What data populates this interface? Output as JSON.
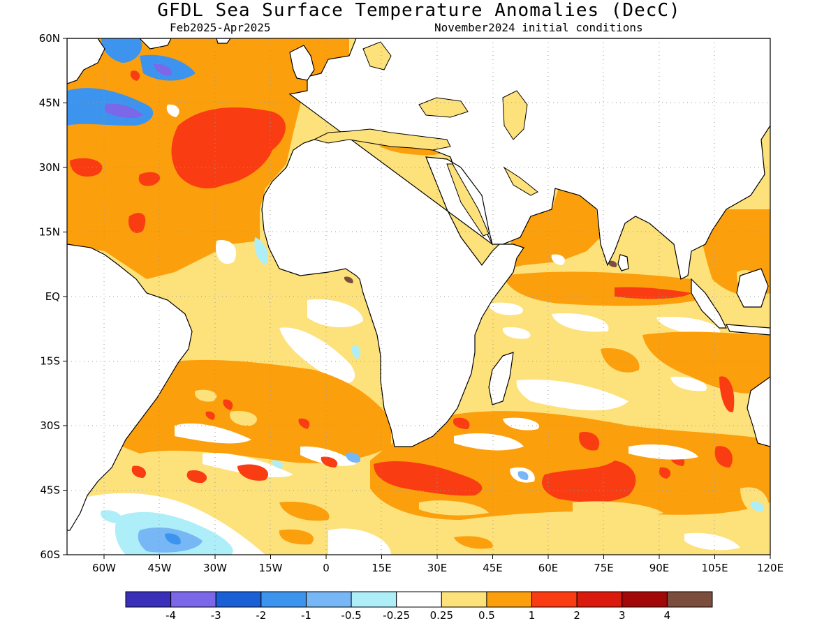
{
  "title": "GFDL Sea Surface Temperature Anomalies (DecC)",
  "subtitle_left": "Feb2025-Apr2025",
  "subtitle_right": "November2024 initial conditions",
  "map": {
    "lon_range": [
      -70,
      120
    ],
    "lat_range": [
      -60,
      60
    ],
    "lat_ticks": [
      {
        "value": 60,
        "label": "60N"
      },
      {
        "value": 45,
        "label": "45N"
      },
      {
        "value": 30,
        "label": "30N"
      },
      {
        "value": 15,
        "label": "15N"
      },
      {
        "value": 0,
        "label": "EQ"
      },
      {
        "value": -15,
        "label": "15S"
      },
      {
        "value": -30,
        "label": "30S"
      },
      {
        "value": -45,
        "label": "45S"
      },
      {
        "value": -60,
        "label": "60S"
      }
    ],
    "lon_ticks": [
      {
        "value": -60,
        "label": "60W"
      },
      {
        "value": -45,
        "label": "45W"
      },
      {
        "value": -30,
        "label": "30W"
      },
      {
        "value": -15,
        "label": "15W"
      },
      {
        "value": 0,
        "label": "0"
      },
      {
        "value": 15,
        "label": "15E"
      },
      {
        "value": 30,
        "label": "30E"
      },
      {
        "value": 45,
        "label": "45E"
      },
      {
        "value": 60,
        "label": "60E"
      },
      {
        "value": 75,
        "label": "75E"
      },
      {
        "value": 90,
        "label": "90E"
      },
      {
        "value": 105,
        "label": "105E"
      },
      {
        "value": 120,
        "label": "120E"
      }
    ]
  },
  "colorbar": {
    "colors": [
      "#3a2fb8",
      "#7b68e8",
      "#1a5fd6",
      "#3d94ee",
      "#77b7f5",
      "#aeeef8",
      "#ffffff",
      "#fde17a",
      "#fb9f0c",
      "#fa3c12",
      "#d91a0c",
      "#a20808",
      "#7a4d3d"
    ],
    "labels": [
      "-4",
      "-3",
      "-2",
      "-1",
      "-0.5",
      "-0.25",
      "0.25",
      "0.5",
      "1",
      "2",
      "3",
      "4"
    ]
  },
  "anomaly_regions": [
    {
      "level": "0.5",
      "color": "#fde17a",
      "area": "tropical and southern oceans"
    },
    {
      "level": "1",
      "color": "#fb9f0c",
      "area": "North Atlantic"
    },
    {
      "level": "1",
      "color": "#fb9f0c",
      "area": "South Atlantic 20S-40S"
    },
    {
      "level": "1",
      "color": "#fb9f0c",
      "area": "Southern Indian Ocean"
    },
    {
      "level": "1",
      "color": "#fb9f0c",
      "area": "Arabian Sea and Bay of Bengal"
    },
    {
      "level": "2",
      "color": "#fa3c12",
      "area": "North Atlantic 30N-45N"
    },
    {
      "level": "2",
      "color": "#fa3c12",
      "area": "South Indian Ocean 40S-45S"
    },
    {
      "level": "-1",
      "color": "#3d94ee",
      "area": "Northwest Atlantic 45N-60N"
    },
    {
      "level": "-0.5",
      "color": "#77b7f5",
      "area": "Southwest Atlantic near 55S"
    }
  ]
}
